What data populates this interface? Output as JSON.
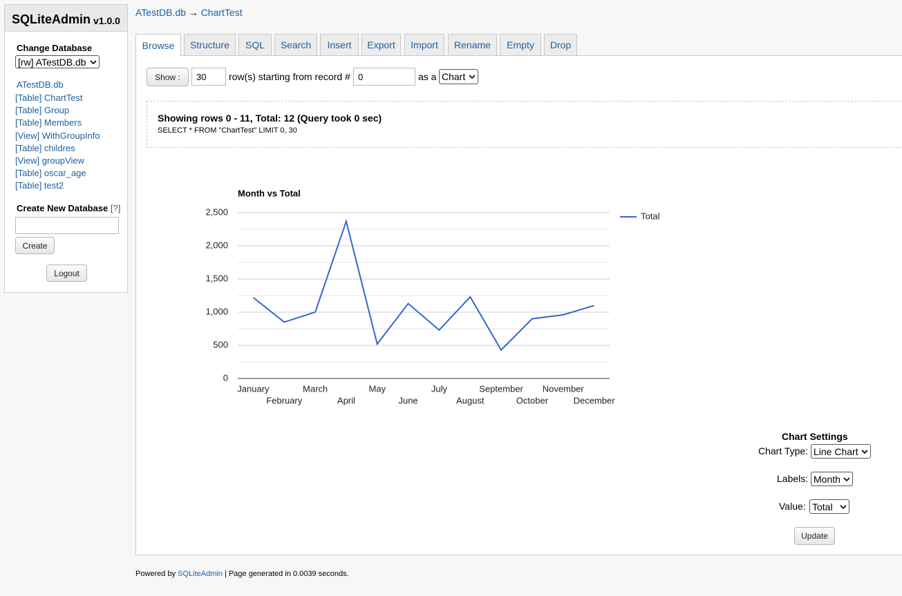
{
  "sidebar": {
    "title": "SQLiteAdmin",
    "version": "v1.0.0",
    "change_database": "Change Database",
    "database_select": "[rw] ATestDB.db",
    "db_link": "ATestDB.db",
    "objects": [
      "[Table] ChartTest",
      "[Table] Group",
      "[Table] Members",
      "[View] WithGroupInfo",
      "[Table] childres",
      "[View] groupView",
      "[Table] oscar_age",
      "[Table] test2"
    ],
    "create_heading": "Create New Database",
    "help": "[?]",
    "create_button": "Create",
    "logout_button": "Logout"
  },
  "breadcrumb": {
    "db": "ATestDB.db",
    "arrow": "→",
    "table": "ChartTest"
  },
  "tabs": [
    "Browse",
    "Structure",
    "SQL",
    "Search",
    "Insert",
    "Export",
    "Import",
    "Rename",
    "Empty",
    "Drop"
  ],
  "browse": {
    "show_button": "Show :",
    "rows": "30",
    "rows_text": "row(s) starting from record #",
    "start": "0",
    "as_a": "as a",
    "view_select": "Chart"
  },
  "result": {
    "summary": "Showing rows 0 - 11, Total: 12 (Query took 0 sec)",
    "query": "SELECT * FROM \"ChartTest\" LIMIT 0, 30"
  },
  "chart_data": {
    "type": "line",
    "title": "Month vs Total",
    "categories": [
      "January",
      "February",
      "March",
      "April",
      "May",
      "June",
      "July",
      "August",
      "September",
      "October",
      "November",
      "December"
    ],
    "series": [
      {
        "name": "Total",
        "color": "#3366cc",
        "values": [
          1220,
          850,
          1000,
          2370,
          520,
          1130,
          730,
          1230,
          430,
          900,
          960,
          1100
        ]
      }
    ],
    "ylim": [
      0,
      2500
    ],
    "yticks": [
      0,
      500,
      {
        "value": 1000,
        "label": "1,000"
      },
      {
        "value": 1500,
        "label": "1,500"
      },
      {
        "value": 2000,
        "label": "2,000"
      },
      {
        "value": 2500,
        "label": "2,500"
      }
    ],
    "minor_yticks": [
      250,
      750,
      1250,
      1750,
      2250
    ],
    "grid": true,
    "legend": "right"
  },
  "chart_settings": {
    "title": "Chart Settings",
    "chart_type_label": "Chart Type:",
    "chart_type": "Line Chart",
    "labels_label": "Labels:",
    "labels": "Month",
    "value_label": "Value:",
    "value": "Total",
    "update_button": "Update"
  },
  "footer": {
    "powered_by": "Powered by",
    "link": "SQLiteAdmin",
    "rest": "| Page generated in 0.0039 seconds."
  }
}
